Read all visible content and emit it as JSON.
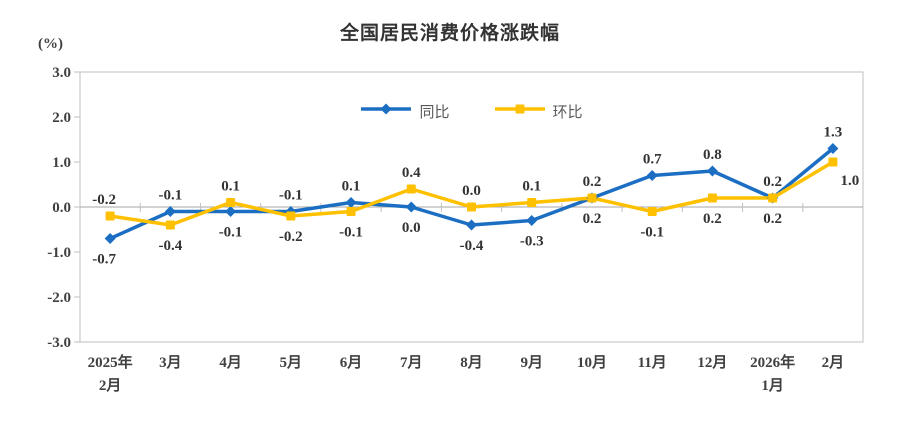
{
  "page": {
    "background": "#ffffff"
  },
  "chart_data": {
    "type": "line",
    "title": "全国居民消费价格涨跌幅",
    "unit_label": "(%)",
    "categories": [
      "2025年\n2月",
      "3月",
      "4月",
      "5月",
      "6月",
      "7月",
      "8月",
      "9月",
      "10月",
      "11月",
      "12月",
      "2026年\n1月",
      "2月"
    ],
    "series": [
      {
        "name": "同比",
        "color": "#1b6ec2",
        "marker": "diamond",
        "values": [
          -0.7,
          -0.1,
          -0.1,
          -0.1,
          0.1,
          0.0,
          -0.4,
          -0.3,
          0.2,
          0.7,
          0.8,
          0.2,
          1.3
        ],
        "label_positions": [
          "below",
          "above",
          "below",
          "above",
          "above",
          "below",
          "below",
          "below",
          "above",
          "above",
          "above",
          "above",
          "above"
        ]
      },
      {
        "name": "环比",
        "color": "#ffc000",
        "marker": "square",
        "values": [
          -0.2,
          -0.4,
          0.1,
          -0.2,
          -0.1,
          0.4,
          0.0,
          0.1,
          0.2,
          -0.1,
          0.2,
          0.2,
          1.0
        ],
        "label_positions": [
          "above",
          "below",
          "above",
          "below",
          "below",
          "above",
          "above",
          "above",
          "below",
          "below",
          "below",
          "below",
          "below"
        ]
      }
    ],
    "y_axis": {
      "min": -3.0,
      "max": 3.0,
      "step": 1.0,
      "tick_labels": [
        "3.0",
        "2.0",
        "1.0",
        "0.0",
        "-1.0",
        "-2.0",
        "-3.0"
      ]
    },
    "legend_position": "top-center",
    "grid": false,
    "colors": {
      "plot_border": "#bfbfbf",
      "zero_line": "#a6a6a6",
      "tick": "#bfbfbf"
    }
  }
}
